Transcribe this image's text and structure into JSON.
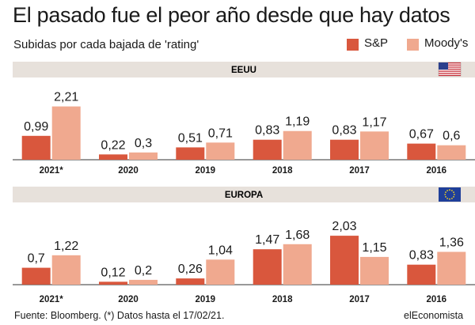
{
  "title": "El pasado fue el peor año desde que hay datos",
  "subtitle": "Subidas por cada bajada de 'rating'",
  "legend": [
    {
      "label": "S&P",
      "color": "#d9573d"
    },
    {
      "label": "Moody's",
      "color": "#f0a98f"
    }
  ],
  "footer": {
    "source": "Fuente: Bloomberg. (*) Datos hasta el 17/02/21.",
    "brand": "elEconomista"
  },
  "colors": {
    "band": "#e7e1db",
    "sp": "#d9573d",
    "moodys": "#f0a98f",
    "axis": "#333333"
  },
  "chart_data": [
    {
      "type": "bar",
      "panel": "EEUU",
      "flag_icon": "us-flag-icon",
      "categories": [
        "2021*",
        "2020",
        "2019",
        "2018",
        "2017",
        "2016"
      ],
      "series": [
        {
          "name": "S&P",
          "values": [
            0.99,
            0.22,
            0.51,
            0.83,
            0.83,
            0.67
          ],
          "labels": [
            "0,99",
            "0,22",
            "0,51",
            "0,83",
            "0,83",
            "0,67"
          ]
        },
        {
          "name": "Moody's",
          "values": [
            2.21,
            0.3,
            0.71,
            1.19,
            1.17,
            0.6
          ],
          "labels": [
            "2,21",
            "0,3",
            "0,71",
            "1,19",
            "1,17",
            "0,6"
          ]
        }
      ]
    },
    {
      "type": "bar",
      "panel": "EUROPA",
      "flag_icon": "eu-flag-icon",
      "categories": [
        "2021*",
        "2020",
        "2019",
        "2018",
        "2017",
        "2016"
      ],
      "series": [
        {
          "name": "S&P",
          "values": [
            0.7,
            0.12,
            0.26,
            1.47,
            2.03,
            0.83
          ],
          "labels": [
            "0,7",
            "0,12",
            "0,26",
            "1,47",
            "2,03",
            "0,83"
          ]
        },
        {
          "name": "Moody's",
          "values": [
            1.22,
            0.2,
            1.04,
            1.68,
            1.15,
            1.36
          ],
          "labels": [
            "1,22",
            "0,2",
            "1,04",
            "1,68",
            "1,15",
            "1,36"
          ]
        }
      ]
    }
  ]
}
